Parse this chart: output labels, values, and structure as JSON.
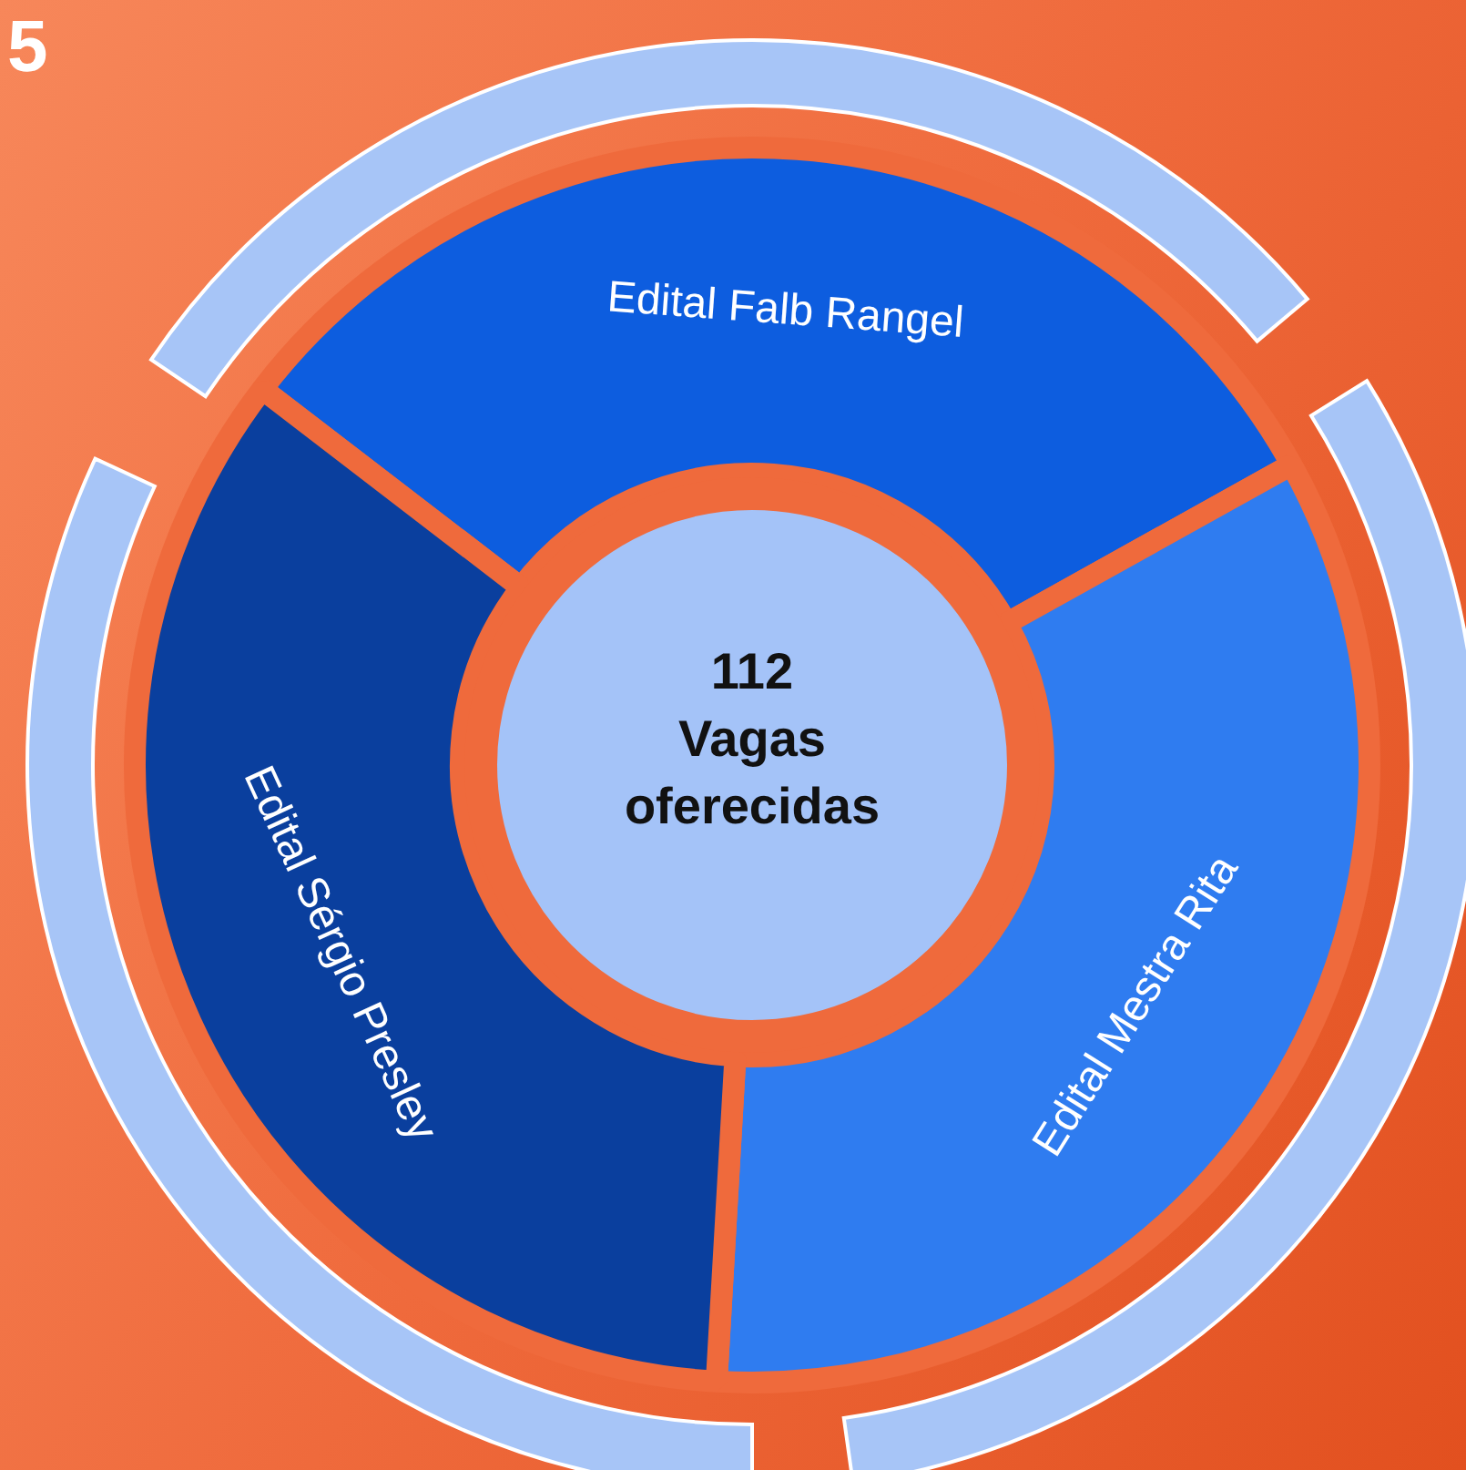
{
  "chart_data": {
    "type": "donut",
    "title": "5",
    "categories": [
      "Edital Falb Rangel",
      "Edital Mestra Rita",
      "Edital Sérgio Presley"
    ],
    "values": [
      31.5,
      34,
      34.5
    ],
    "colors": [
      "#0d5ddf",
      "#2f7cf0",
      "#0a3f9e"
    ],
    "annotations": [
      "112",
      "Vagas oferecidas"
    ]
  }
}
